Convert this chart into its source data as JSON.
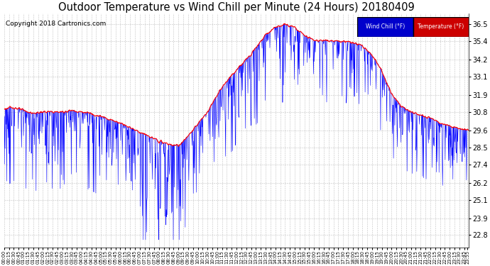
{
  "title": "Outdoor Temperature vs Wind Chill per Minute (24 Hours) 20180409",
  "copyright": "Copyright 2018 Cartronics.com",
  "y_ticks": [
    22.8,
    23.9,
    25.1,
    26.2,
    27.4,
    28.5,
    29.6,
    30.8,
    31.9,
    33.1,
    34.2,
    35.4,
    36.5
  ],
  "y_min": 22.0,
  "y_max": 37.2,
  "wind_chill_color": "#0000FF",
  "temp_color": "#FF0000",
  "plot_bg_color": "#FFFFFF",
  "grid_color": "#BBBBBB",
  "legend_wind_chill_bg": "#0000CC",
  "legend_temp_bg": "#CC0000",
  "title_fontsize": 10.5,
  "copyright_fontsize": 6.5,
  "n_points": 1440
}
